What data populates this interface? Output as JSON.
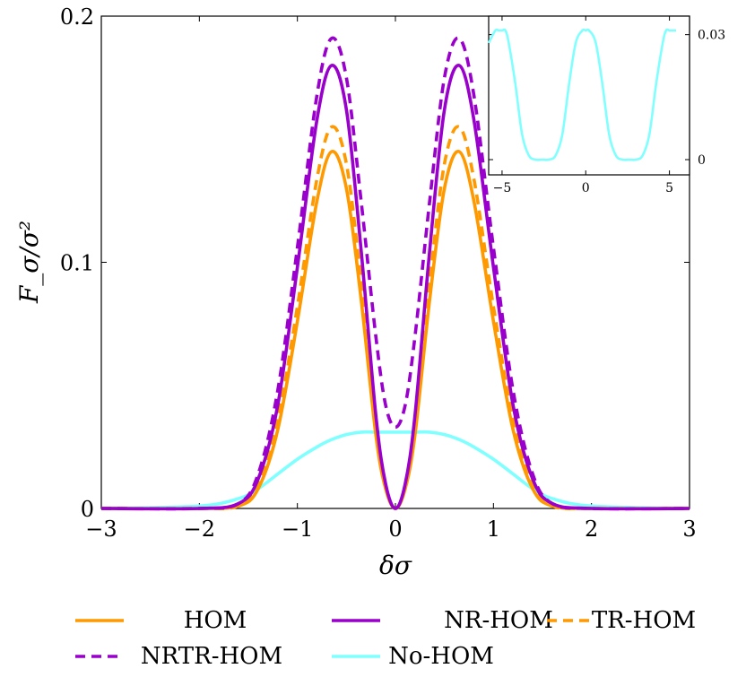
{
  "chart_data": [
    {
      "type": "line",
      "xlabel": "δσ",
      "ylabel": "F_σ/σ²",
      "xlim": [
        -3,
        3
      ],
      "ylim": [
        0,
        0.2
      ],
      "x_ticks": [
        "−3",
        "−2",
        "−1",
        "0",
        "1",
        "2",
        "3"
      ],
      "y_ticks": [
        "0",
        "0.1",
        "0.2"
      ],
      "grid": false,
      "legend_position": "bottom",
      "x": [
        -3,
        -2,
        -1.6,
        -1.4,
        -1.2,
        -1.0,
        -0.8,
        -0.65,
        -0.5,
        -0.35,
        -0.2,
        -0.1,
        0,
        0.1,
        0.2,
        0.35,
        0.5,
        0.65,
        0.8,
        1.0,
        1.2,
        1.4,
        1.6,
        2,
        3
      ],
      "series": [
        {
          "name": "HOM",
          "color": "#ff9900",
          "dash": "solid",
          "values": [
            0,
            0,
            0.001,
            0.008,
            0.032,
            0.076,
            0.125,
            0.145,
            0.13,
            0.085,
            0.03,
            0.008,
            0,
            0.008,
            0.03,
            0.085,
            0.13,
            0.145,
            0.125,
            0.076,
            0.032,
            0.008,
            0.001,
            0,
            0
          ]
        },
        {
          "name": "NR-HOM",
          "color": "#9900cc",
          "dash": "solid",
          "values": [
            0,
            0,
            0.002,
            0.012,
            0.042,
            0.098,
            0.158,
            0.18,
            0.162,
            0.105,
            0.038,
            0.01,
            0,
            0.01,
            0.038,
            0.105,
            0.162,
            0.18,
            0.158,
            0.098,
            0.042,
            0.012,
            0.002,
            0,
            0
          ]
        },
        {
          "name": "TR-HOM",
          "color": "#ff9900",
          "dash": "dashed",
          "values": [
            0,
            0,
            0.001,
            0.01,
            0.036,
            0.082,
            0.134,
            0.155,
            0.14,
            0.092,
            0.033,
            0.009,
            0,
            0.009,
            0.033,
            0.092,
            0.14,
            0.155,
            0.134,
            0.082,
            0.036,
            0.01,
            0.001,
            0,
            0
          ]
        },
        {
          "name": "NRTR-HOM",
          "color": "#9900cc",
          "dash": "dashed",
          "values": [
            0,
            0,
            0.002,
            0.014,
            0.048,
            0.106,
            0.168,
            0.191,
            0.175,
            0.125,
            0.07,
            0.042,
            0.033,
            0.042,
            0.07,
            0.125,
            0.175,
            0.191,
            0.168,
            0.106,
            0.048,
            0.014,
            0.002,
            0,
            0
          ]
        },
        {
          "name": "No-HOM",
          "color": "#80ffff",
          "dash": "solid",
          "values": [
            0,
            0.001,
            0.004,
            0.008,
            0.014,
            0.02,
            0.025,
            0.028,
            0.03,
            0.031,
            0.031,
            0.031,
            0.031,
            0.031,
            0.031,
            0.031,
            0.03,
            0.028,
            0.025,
            0.02,
            0.014,
            0.008,
            0.004,
            0.001,
            0
          ]
        }
      ]
    },
    {
      "type": "line",
      "xlim": [
        -5.8,
        6.2
      ],
      "ylim": [
        0,
        0.031
      ],
      "x_ticks": [
        "−5",
        "0",
        "5"
      ],
      "y_ticks": [
        "0",
        "0.03"
      ],
      "y_axis_side": "right",
      "x": [
        -5.8,
        -5.4,
        -5.2,
        -5.0,
        -4.8,
        -4.6,
        -4.2,
        -3.8,
        -3.4,
        -3.0,
        -2.6,
        -2.2,
        -1.8,
        -1.4,
        -1.0,
        -0.6,
        -0.2,
        0,
        0.2,
        0.6,
        1.0,
        1.4,
        1.8,
        2.2,
        2.6,
        3.0,
        3.4,
        3.8,
        4.2,
        4.6,
        4.8,
        5.0,
        5.2,
        5.4
      ],
      "series": [
        {
          "name": "",
          "color": "#80ffff",
          "dash": "solid",
          "values": [
            0.028,
            0.031,
            0.031,
            0.031,
            0.031,
            0.028,
            0.018,
            0.006,
            0.001,
            0,
            0,
            0,
            0.001,
            0.006,
            0.018,
            0.028,
            0.031,
            0.031,
            0.031,
            0.028,
            0.018,
            0.006,
            0.001,
            0,
            0,
            0,
            0.001,
            0.006,
            0.018,
            0.028,
            0.031,
            0.031,
            0.031,
            0.031
          ]
        }
      ]
    }
  ]
}
